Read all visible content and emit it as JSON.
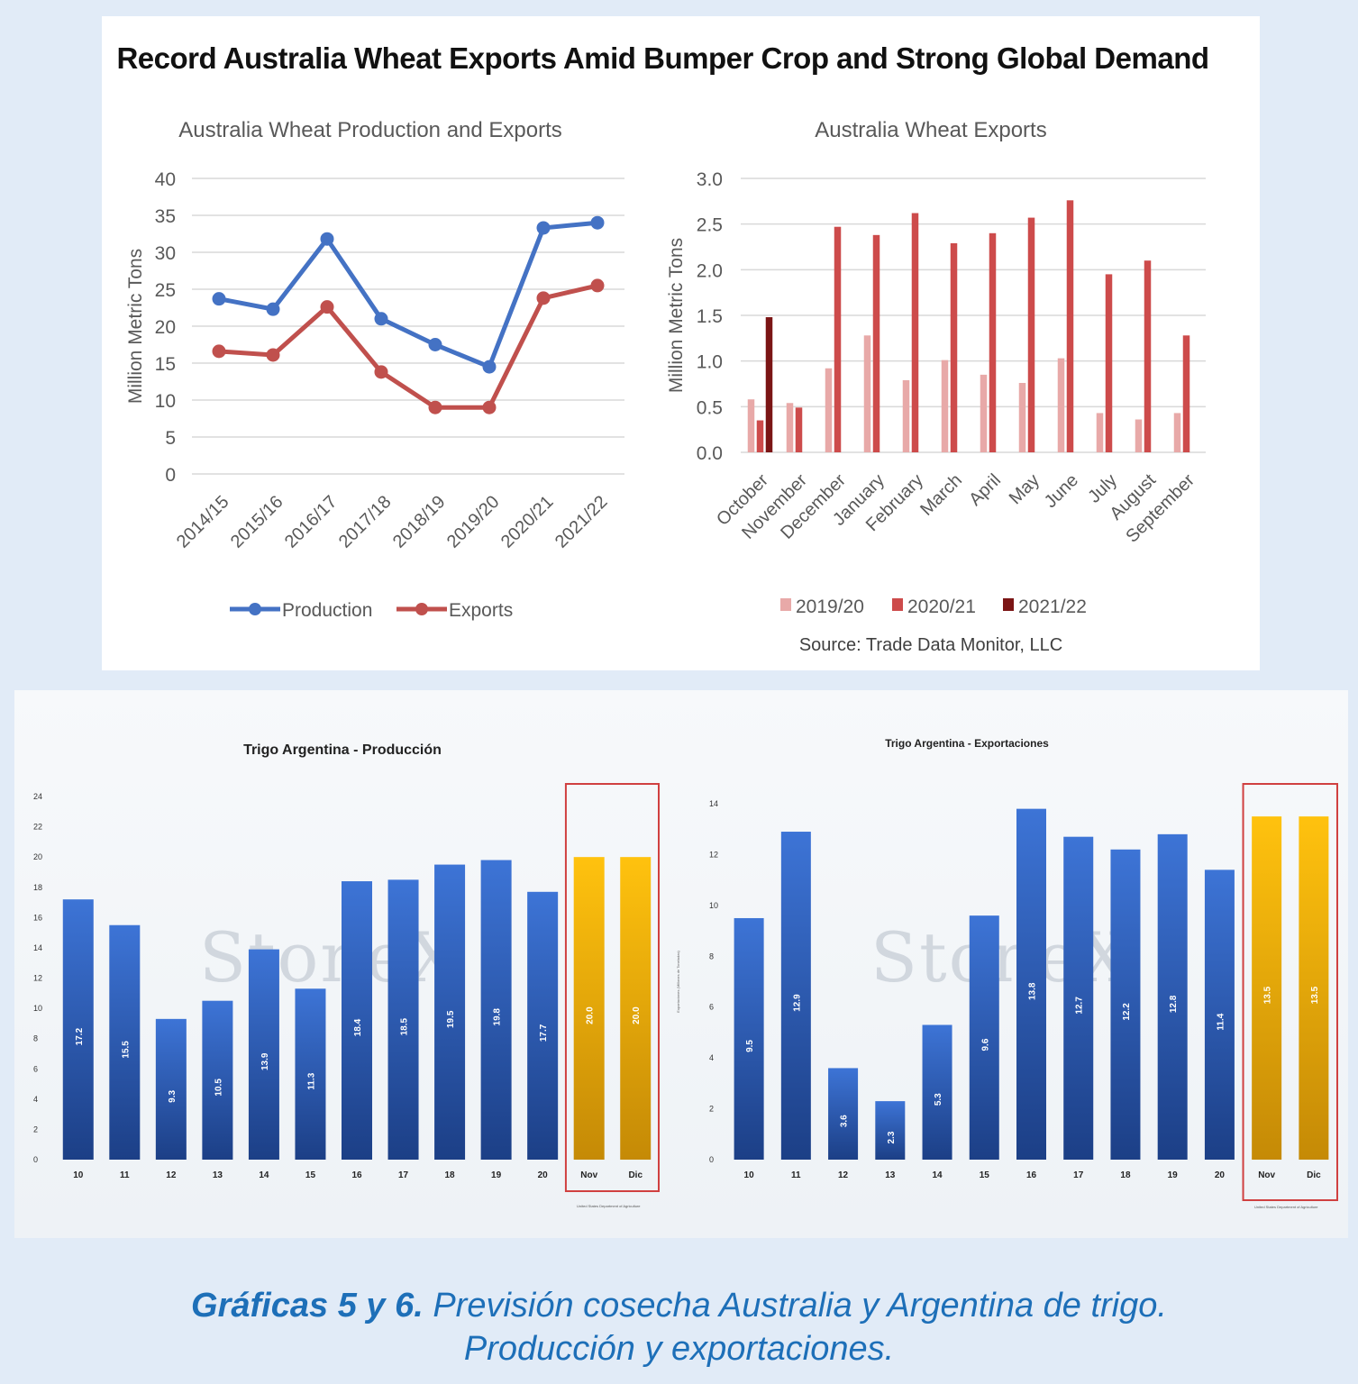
{
  "header": {
    "title": "Record Australia Wheat Exports Amid Bumper Crop and Strong Global Demand"
  },
  "colors": {
    "production": "#4472c4",
    "exports": "#c0504d",
    "s1920": "#e8a9a8",
    "s2021": "#cd4b4b",
    "s2122": "#7b1515",
    "bar_blue": "#2a5bb5",
    "bar_gold": "#f2b705",
    "highlight_box": "#d04040",
    "caption": "#1d6fb8"
  },
  "watermark": "StoneX",
  "caption": {
    "bold": "Gráficas 5 y 6.",
    "line1": " Previsión cosecha Australia y Argentina de trigo.",
    "line2": "Producción y exportaciones."
  },
  "chart_data": [
    {
      "type": "line",
      "title": "Australia Wheat Production and Exports",
      "ylabel": "Million Metric Tons",
      "ylim": [
        0,
        40
      ],
      "yticks": [
        0,
        5,
        10,
        15,
        20,
        25,
        30,
        35,
        40
      ],
      "grid": true,
      "legend_position": "bottom",
      "x": [
        "2014/15",
        "2015/16",
        "2016/17",
        "2017/18",
        "2018/19",
        "2019/20",
        "2020/21",
        "2021/22"
      ],
      "series": [
        {
          "name": "Production",
          "values": [
            23.7,
            22.3,
            31.8,
            21.0,
            17.5,
            14.5,
            33.3,
            34.0
          ]
        },
        {
          "name": "Exports",
          "values": [
            16.6,
            16.1,
            22.6,
            13.8,
            9.0,
            9.0,
            23.8,
            25.5
          ]
        }
      ]
    },
    {
      "type": "bar",
      "title": "Australia Wheat Exports",
      "ylabel": "Million Metric Tons",
      "ylim": [
        0,
        3.0
      ],
      "yticks": [
        "0.0",
        "0.5",
        "1.0",
        "1.5",
        "2.0",
        "2.5",
        "3.0"
      ],
      "grid": true,
      "legend_position": "bottom",
      "source": "Source: Trade Data Monitor, LLC",
      "categories": [
        "October",
        "November",
        "December",
        "January",
        "February",
        "March",
        "April",
        "May",
        "June",
        "July",
        "August",
        "September"
      ],
      "series": [
        {
          "name": "2019/20",
          "values": [
            0.58,
            0.54,
            0.92,
            1.28,
            0.79,
            1.01,
            0.85,
            0.76,
            1.03,
            0.43,
            0.36,
            0.43
          ]
        },
        {
          "name": "2020/21",
          "values": [
            0.35,
            0.49,
            2.47,
            2.38,
            2.62,
            2.29,
            2.4,
            2.57,
            2.76,
            1.95,
            2.1,
            1.28
          ]
        },
        {
          "name": "2021/22",
          "values": [
            1.48,
            null,
            null,
            null,
            null,
            null,
            null,
            null,
            null,
            null,
            null,
            null
          ]
        }
      ]
    },
    {
      "type": "bar",
      "title": "Trigo Argentina - Producción",
      "ylim": [
        0,
        24
      ],
      "yticks": [
        0,
        2,
        4,
        6,
        8,
        10,
        12,
        14,
        16,
        18,
        20,
        22,
        24
      ],
      "categories": [
        "10",
        "11",
        "12",
        "13",
        "14",
        "15",
        "16",
        "17",
        "18",
        "19",
        "20",
        "Nov",
        "Dic"
      ],
      "values": [
        17.2,
        15.5,
        9.3,
        10.5,
        13.9,
        11.3,
        18.4,
        18.5,
        19.5,
        19.8,
        17.7,
        20.0,
        20.0
      ],
      "labels": [
        "17.2",
        "15.5",
        "9.3",
        "10.5",
        "13.9",
        "11.3",
        "18.4",
        "18.5",
        "19.5",
        "19.8",
        "17.7",
        "20.0",
        "20.0"
      ],
      "highlighted": [
        "Nov",
        "Dic"
      ],
      "source": "United States Department of Agriculture"
    },
    {
      "type": "bar",
      "title": "Trigo Argentina - Exportaciones",
      "ylabel": "Exportaciones (Millones de Toneladas)",
      "ylim": [
        0,
        14
      ],
      "yticks": [
        0,
        2,
        4,
        6,
        8,
        10,
        12,
        14
      ],
      "categories": [
        "10",
        "11",
        "12",
        "13",
        "14",
        "15",
        "16",
        "17",
        "18",
        "19",
        "20",
        "Nov",
        "Dic"
      ],
      "values": [
        9.5,
        12.9,
        3.6,
        2.3,
        5.3,
        9.6,
        13.8,
        12.7,
        12.2,
        12.8,
        11.4,
        13.5,
        13.5
      ],
      "labels": [
        "9.5",
        "12.9",
        "3.6",
        "2.3",
        "5.3",
        "9.6",
        "13.8",
        "12.7",
        "12.2",
        "12.8",
        "11.4",
        "13.5",
        "13.5"
      ],
      "highlighted": [
        "Nov",
        "Dic"
      ],
      "source": "United States Department of Agriculture"
    }
  ]
}
